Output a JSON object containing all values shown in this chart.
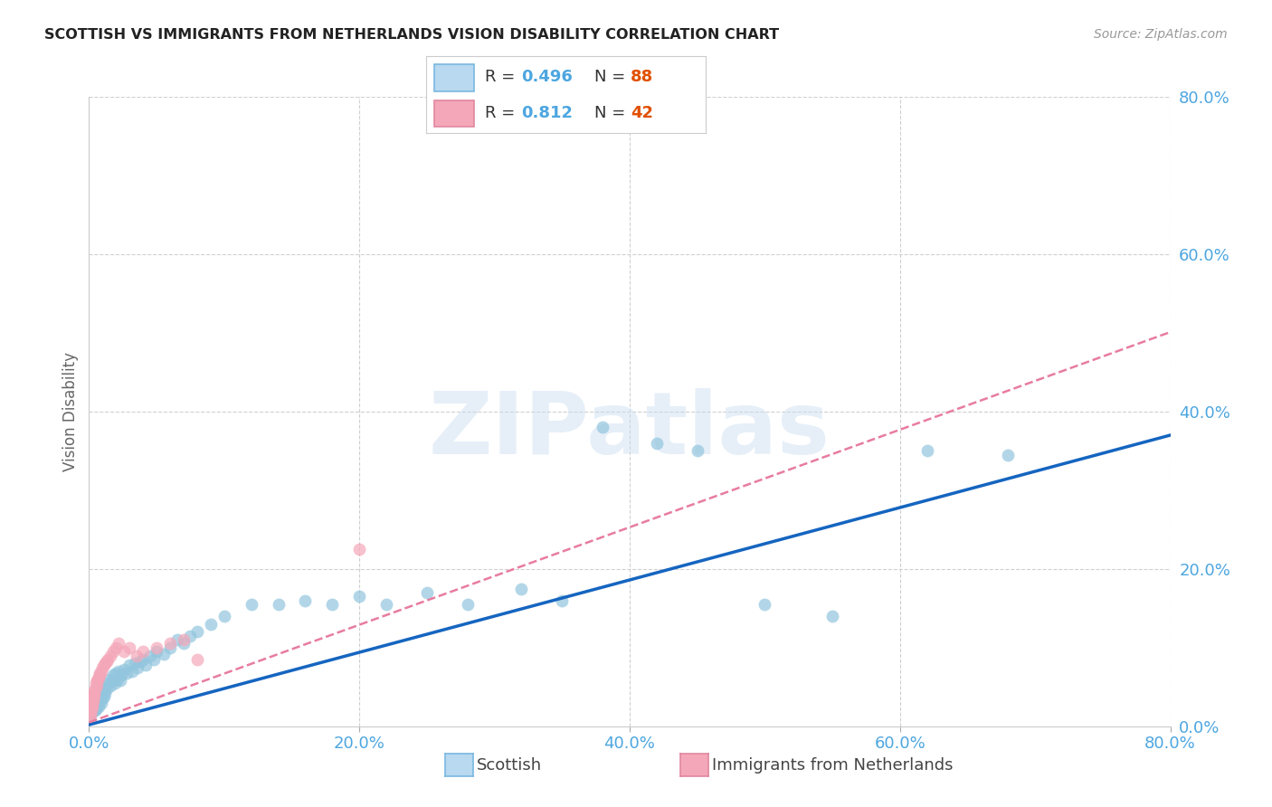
{
  "title": "SCOTTISH VS IMMIGRANTS FROM NETHERLANDS VISION DISABILITY CORRELATION CHART",
  "source": "Source: ZipAtlas.com",
  "ylabel": "Vision Disability",
  "xlim": [
    0.0,
    0.8
  ],
  "ylim": [
    0.0,
    0.8
  ],
  "xticks": [
    0.0,
    0.2,
    0.4,
    0.6,
    0.8
  ],
  "yticks_right": [
    0.0,
    0.2,
    0.4,
    0.6,
    0.8
  ],
  "xtick_labels": [
    "0.0%",
    "20.0%",
    "40.0%",
    "60.0%",
    "80.0%"
  ],
  "ytick_labels_right": [
    "0.0%",
    "20.0%",
    "40.0%",
    "60.0%",
    "80.0%"
  ],
  "scottish_x": [
    0.001,
    0.0012,
    0.0015,
    0.0018,
    0.002,
    0.0022,
    0.0025,
    0.0028,
    0.003,
    0.0032,
    0.0035,
    0.0038,
    0.004,
    0.0042,
    0.0045,
    0.0048,
    0.005,
    0.0052,
    0.0055,
    0.0058,
    0.006,
    0.0062,
    0.0065,
    0.0068,
    0.007,
    0.0072,
    0.0075,
    0.0078,
    0.008,
    0.0082,
    0.0085,
    0.0088,
    0.009,
    0.0095,
    0.01,
    0.0105,
    0.011,
    0.0115,
    0.012,
    0.013,
    0.014,
    0.015,
    0.016,
    0.017,
    0.018,
    0.019,
    0.02,
    0.021,
    0.022,
    0.023,
    0.024,
    0.026,
    0.028,
    0.03,
    0.032,
    0.034,
    0.036,
    0.038,
    0.04,
    0.042,
    0.045,
    0.048,
    0.05,
    0.055,
    0.06,
    0.065,
    0.07,
    0.075,
    0.08,
    0.09,
    0.1,
    0.12,
    0.14,
    0.16,
    0.18,
    0.2,
    0.22,
    0.25,
    0.28,
    0.32,
    0.35,
    0.38,
    0.42,
    0.45,
    0.5,
    0.55,
    0.62,
    0.68
  ],
  "scottish_y": [
    0.02,
    0.015,
    0.025,
    0.018,
    0.022,
    0.03,
    0.018,
    0.025,
    0.02,
    0.035,
    0.022,
    0.028,
    0.025,
    0.032,
    0.02,
    0.028,
    0.035,
    0.022,
    0.03,
    0.025,
    0.032,
    0.028,
    0.035,
    0.03,
    0.038,
    0.025,
    0.04,
    0.032,
    0.035,
    0.042,
    0.038,
    0.03,
    0.045,
    0.035,
    0.04,
    0.048,
    0.038,
    0.05,
    0.042,
    0.048,
    0.055,
    0.06,
    0.052,
    0.058,
    0.065,
    0.055,
    0.068,
    0.06,
    0.07,
    0.058,
    0.065,
    0.072,
    0.068,
    0.078,
    0.07,
    0.08,
    0.075,
    0.082,
    0.085,
    0.078,
    0.09,
    0.085,
    0.095,
    0.092,
    0.1,
    0.11,
    0.105,
    0.115,
    0.12,
    0.13,
    0.14,
    0.155,
    0.155,
    0.16,
    0.155,
    0.165,
    0.155,
    0.17,
    0.155,
    0.175,
    0.16,
    0.38,
    0.36,
    0.35,
    0.155,
    0.14,
    0.35,
    0.345
  ],
  "netherlands_x": [
    0.0005,
    0.0008,
    0.001,
    0.0012,
    0.0015,
    0.0018,
    0.002,
    0.0022,
    0.0025,
    0.0028,
    0.003,
    0.0032,
    0.0035,
    0.0038,
    0.004,
    0.0045,
    0.005,
    0.0055,
    0.006,
    0.0065,
    0.007,
    0.0075,
    0.008,
    0.009,
    0.01,
    0.011,
    0.012,
    0.013,
    0.014,
    0.016,
    0.018,
    0.02,
    0.022,
    0.026,
    0.03,
    0.035,
    0.04,
    0.05,
    0.06,
    0.07,
    0.08,
    0.2
  ],
  "netherlands_y": [
    0.01,
    0.015,
    0.018,
    0.02,
    0.025,
    0.022,
    0.028,
    0.025,
    0.03,
    0.032,
    0.035,
    0.038,
    0.04,
    0.042,
    0.045,
    0.048,
    0.055,
    0.052,
    0.058,
    0.06,
    0.062,
    0.065,
    0.068,
    0.07,
    0.075,
    0.078,
    0.08,
    0.082,
    0.085,
    0.09,
    0.095,
    0.1,
    0.105,
    0.095,
    0.1,
    0.09,
    0.095,
    0.1,
    0.105,
    0.11,
    0.085,
    0.225
  ],
  "blue_scatter_color": "#92c5de",
  "pink_scatter_color": "#f4a7b9",
  "blue_line_color": "#1565c0",
  "pink_line_color": "#e87ca0",
  "background_color": "#ffffff",
  "grid_color": "#d0d0d0",
  "title_color": "#222222",
  "axis_label_color": "#666666",
  "tick_label_color": "#4da6e0",
  "watermark": "ZIPatlas",
  "legend_R_color": "#4da6e0",
  "legend_N_color": "#e05000",
  "blue_trendline_slope": 0.46,
  "blue_trendline_intercept": 0.002,
  "pink_trendline_slope": 0.62,
  "pink_trendline_intercept": 0.005
}
